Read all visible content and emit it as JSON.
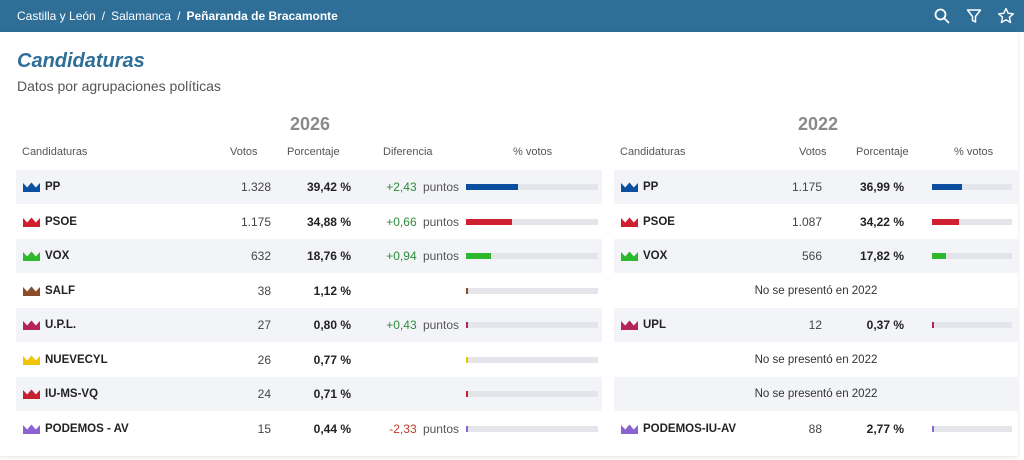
{
  "breadcrumb": [
    "Castilla y León",
    "Salamanca",
    "Peñaranda de Bracamonte"
  ],
  "header_icons": [
    "search-icon",
    "filter-icon",
    "star-icon"
  ],
  "title": "Candidaturas",
  "subtitle": "Datos por agrupaciones políticas",
  "left": {
    "year": "2026",
    "headers": {
      "party": "Candidaturas",
      "votes": "Votos",
      "pct": "Porcentaje",
      "diff": "Diferencia",
      "bar": "% votos"
    },
    "rows": [
      {
        "party": "PP",
        "color": "#0b4fa0",
        "votes": "1.328",
        "pct": "39,42 %",
        "pct_value": 39.42,
        "diff": "+2,43",
        "diff_unit": "puntos",
        "sign": "pos"
      },
      {
        "party": "PSOE",
        "color": "#d01f2e",
        "votes": "1.175",
        "pct": "34,88 %",
        "pct_value": 34.88,
        "diff": "+0,66",
        "diff_unit": "puntos",
        "sign": "pos"
      },
      {
        "party": "VOX",
        "color": "#2db82d",
        "votes": "632",
        "pct": "18,76 %",
        "pct_value": 18.76,
        "diff": "+0,94",
        "diff_unit": "puntos",
        "sign": "pos"
      },
      {
        "party": "SALF",
        "color": "#8a4b2a",
        "votes": "38",
        "pct": "1,12 %",
        "pct_value": 1.12,
        "diff": "",
        "diff_unit": "",
        "sign": ""
      },
      {
        "party": "U.P.L.",
        "color": "#b3245a",
        "votes": "27",
        "pct": "0,80 %",
        "pct_value": 0.8,
        "diff": "+0,43",
        "diff_unit": "puntos",
        "sign": "pos"
      },
      {
        "party": "NUEVECYL",
        "color": "#f2c300",
        "votes": "26",
        "pct": "0,77 %",
        "pct_value": 0.77,
        "diff": "",
        "diff_unit": "",
        "sign": ""
      },
      {
        "party": "IU-MS-VQ",
        "color": "#c4202e",
        "votes": "24",
        "pct": "0,71 %",
        "pct_value": 0.71,
        "diff": "",
        "diff_unit": "",
        "sign": ""
      },
      {
        "party": "PODEMOS - AV",
        "color": "#8a63d2",
        "votes": "15",
        "pct": "0,44 %",
        "pct_value": 0.44,
        "diff": "-2,33",
        "diff_unit": "puntos",
        "sign": "neg"
      }
    ]
  },
  "right": {
    "year": "2022",
    "headers": {
      "party": "Candidaturas",
      "votes": "Votos",
      "pct": "Porcentaje",
      "bar": "% votos"
    },
    "rows": [
      {
        "party": "PP",
        "color": "#0b4fa0",
        "votes": "1.175",
        "pct": "36,99 %",
        "pct_value": 36.99
      },
      {
        "party": "PSOE",
        "color": "#d01f2e",
        "votes": "1.087",
        "pct": "34,22 %",
        "pct_value": 34.22
      },
      {
        "party": "VOX",
        "color": "#2db82d",
        "votes": "566",
        "pct": "17,82 %",
        "pct_value": 17.82
      },
      {
        "na": "No se presentó en 2022"
      },
      {
        "party": "UPL",
        "color": "#b3245a",
        "votes": "12",
        "pct": "0,37 %",
        "pct_value": 0.37
      },
      {
        "na": "No se presentó en 2022"
      },
      {
        "na": "No se presentó en 2022"
      },
      {
        "party": "PODEMOS-IU-AV",
        "color": "#8a63d2",
        "votes": "88",
        "pct": "2,77 %",
        "pct_value": 2.77
      }
    ]
  }
}
